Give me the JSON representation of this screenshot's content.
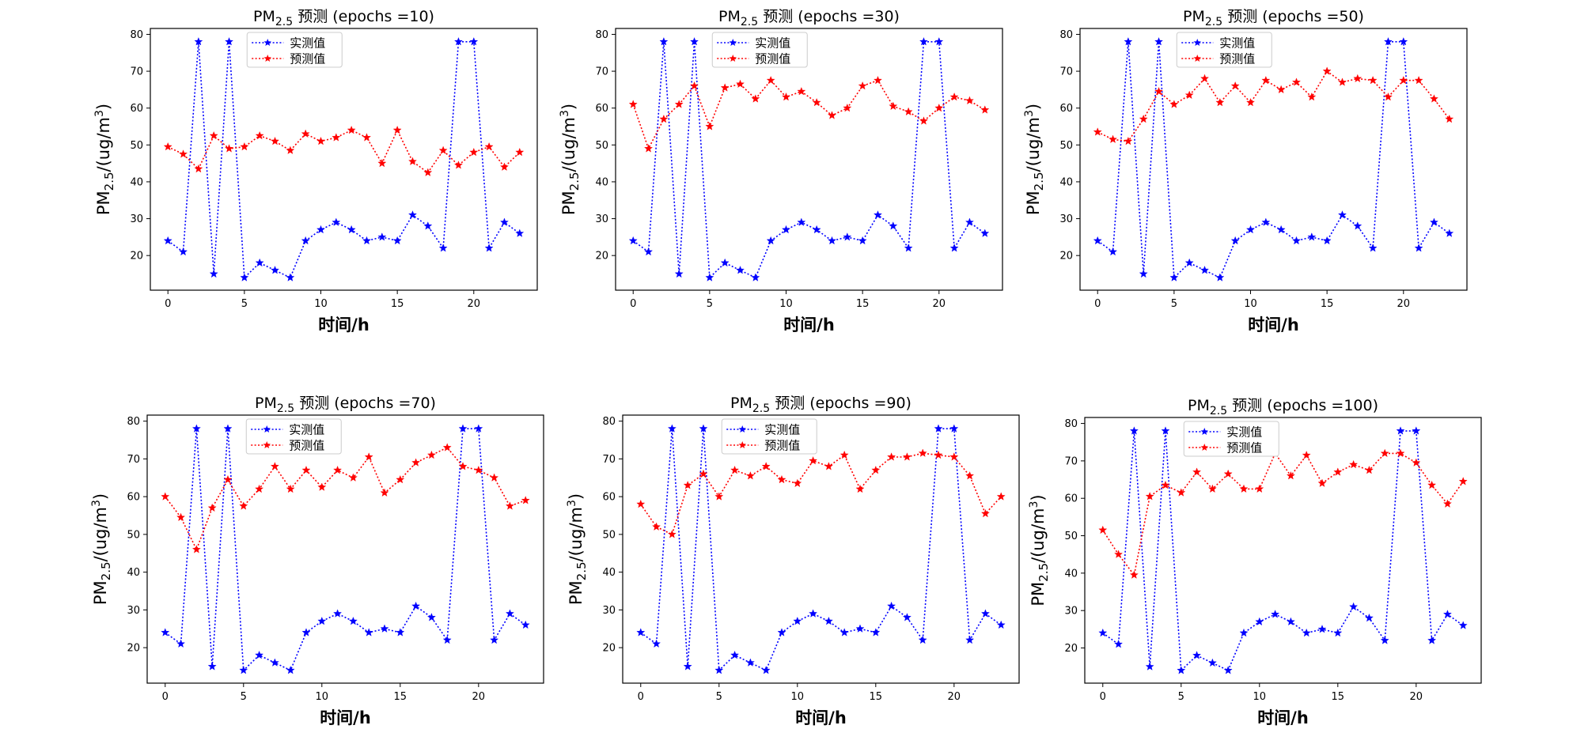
{
  "chart_data": [
    {
      "type": "line",
      "title": {
        "prefix": "PM",
        "sub": "2.5",
        "suffix": " 预测 (epochs =10)"
      },
      "xlabel": "时间/h",
      "ylabel": {
        "prefix": "PM",
        "sub": "2.5",
        "mid": "/(ug/m",
        "sup": "3",
        "suffix": ")"
      },
      "xlim": [
        -1.15,
        24.15
      ],
      "ylim": [
        10.6,
        81.6
      ],
      "xticks": [
        0,
        5,
        10,
        15,
        20
      ],
      "yticks": [
        20,
        30,
        40,
        50,
        60,
        70,
        80
      ],
      "legend_position": "upper-center",
      "x": [
        0,
        1,
        2,
        3,
        4,
        5,
        6,
        7,
        8,
        9,
        10,
        11,
        12,
        13,
        14,
        15,
        16,
        17,
        18,
        19,
        20,
        21,
        22,
        23
      ],
      "series": [
        {
          "name": "实测值",
          "color": "#0000ff",
          "marker": "star",
          "linestyle": "dotted",
          "values": [
            24,
            21,
            78,
            15,
            78,
            14,
            18,
            16,
            14,
            24,
            27,
            29,
            27,
            24,
            25,
            24,
            31,
            28,
            22,
            78,
            78,
            22,
            29,
            26
          ]
        },
        {
          "name": "预测值",
          "color": "#ff0000",
          "marker": "star",
          "linestyle": "dotted",
          "values": [
            49.5,
            47.5,
            43.5,
            52.5,
            49,
            49.5,
            52.5,
            51,
            48.5,
            53,
            51,
            52,
            54,
            52,
            45,
            54,
            45.5,
            42.5,
            48.5,
            44.5,
            48,
            49.5,
            44,
            48
          ]
        }
      ]
    },
    {
      "type": "line",
      "title": {
        "prefix": "PM",
        "sub": "2.5",
        "suffix": " 预测 (epochs =30)"
      },
      "xlabel": "时间/h",
      "ylabel": {
        "prefix": "PM",
        "sub": "2.5",
        "mid": "/(ug/m",
        "sup": "3",
        "suffix": ")"
      },
      "xlim": [
        -1.15,
        24.15
      ],
      "ylim": [
        10.6,
        81.6
      ],
      "xticks": [
        0,
        5,
        10,
        15,
        20
      ],
      "yticks": [
        20,
        30,
        40,
        50,
        60,
        70,
        80
      ],
      "legend_position": "upper-center",
      "x": [
        0,
        1,
        2,
        3,
        4,
        5,
        6,
        7,
        8,
        9,
        10,
        11,
        12,
        13,
        14,
        15,
        16,
        17,
        18,
        19,
        20,
        21,
        22,
        23
      ],
      "series": [
        {
          "name": "实测值",
          "color": "#0000ff",
          "marker": "star",
          "linestyle": "dotted",
          "values": [
            24,
            21,
            78,
            15,
            78,
            14,
            18,
            16,
            14,
            24,
            27,
            29,
            27,
            24,
            25,
            24,
            31,
            28,
            22,
            78,
            78,
            22,
            29,
            26
          ]
        },
        {
          "name": "预测值",
          "color": "#ff0000",
          "marker": "star",
          "linestyle": "dotted",
          "values": [
            61,
            49,
            57,
            61,
            66,
            55,
            65.5,
            66.5,
            62.5,
            67.5,
            63,
            64.5,
            61.5,
            58,
            60,
            66,
            67.5,
            60.5,
            59,
            56.5,
            60,
            63,
            62,
            59.5
          ]
        }
      ]
    },
    {
      "type": "line",
      "title": {
        "prefix": "PM",
        "sub": "2.5",
        "suffix": " 预测 (epochs =50)"
      },
      "xlabel": "时间/h",
      "ylabel": {
        "prefix": "PM",
        "sub": "2.5",
        "mid": "/(ug/m",
        "sup": "3",
        "suffix": ")"
      },
      "xlim": [
        -1.15,
        24.15
      ],
      "ylim": [
        10.6,
        81.6
      ],
      "xticks": [
        0,
        5,
        10,
        15,
        20
      ],
      "yticks": [
        20,
        30,
        40,
        50,
        60,
        70,
        80
      ],
      "legend_position": "upper-center",
      "x": [
        0,
        1,
        2,
        3,
        4,
        5,
        6,
        7,
        8,
        9,
        10,
        11,
        12,
        13,
        14,
        15,
        16,
        17,
        18,
        19,
        20,
        21,
        22,
        23
      ],
      "series": [
        {
          "name": "实测值",
          "color": "#0000ff",
          "marker": "star",
          "linestyle": "dotted",
          "values": [
            24,
            21,
            78,
            15,
            78,
            14,
            18,
            16,
            14,
            24,
            27,
            29,
            27,
            24,
            25,
            24,
            31,
            28,
            22,
            78,
            78,
            22,
            29,
            26
          ]
        },
        {
          "name": "预测值",
          "color": "#ff0000",
          "marker": "star",
          "linestyle": "dotted",
          "values": [
            53.5,
            51.5,
            51,
            57,
            64.5,
            61,
            63.5,
            68,
            61.5,
            66,
            61.5,
            67.5,
            65,
            67,
            63,
            70,
            67,
            68,
            67.5,
            63,
            67.5,
            67.5,
            62.5,
            57
          ]
        }
      ]
    },
    {
      "type": "line",
      "title": {
        "prefix": "PM",
        "sub": "2.5",
        "suffix": " 预测 (epochs =70)"
      },
      "xlabel": "时间/h",
      "ylabel": {
        "prefix": "PM",
        "sub": "2.5",
        "mid": "/(ug/m",
        "sup": "3",
        "suffix": ")"
      },
      "xlim": [
        -1.15,
        24.15
      ],
      "ylim": [
        10.6,
        81.6
      ],
      "xticks": [
        0,
        5,
        10,
        15,
        20
      ],
      "yticks": [
        20,
        30,
        40,
        50,
        60,
        70,
        80
      ],
      "legend_position": "upper-center",
      "x": [
        0,
        1,
        2,
        3,
        4,
        5,
        6,
        7,
        8,
        9,
        10,
        11,
        12,
        13,
        14,
        15,
        16,
        17,
        18,
        19,
        20,
        21,
        22,
        23
      ],
      "series": [
        {
          "name": "实测值",
          "color": "#0000ff",
          "marker": "star",
          "linestyle": "dotted",
          "values": [
            24,
            21,
            78,
            15,
            78,
            14,
            18,
            16,
            14,
            24,
            27,
            29,
            27,
            24,
            25,
            24,
            31,
            28,
            22,
            78,
            78,
            22,
            29,
            26
          ]
        },
        {
          "name": "预测值",
          "color": "#ff0000",
          "marker": "star",
          "linestyle": "dotted",
          "values": [
            60,
            54.5,
            46,
            57,
            64.5,
            57.5,
            62,
            68,
            62,
            67,
            62.5,
            67,
            65,
            70.5,
            61,
            64.5,
            69,
            71,
            73,
            68,
            67,
            65,
            57.5,
            59
          ]
        }
      ]
    },
    {
      "type": "line",
      "title": {
        "prefix": "PM",
        "sub": "2.5",
        "suffix": " 预测 (epochs =90)"
      },
      "xlabel": "时间/h",
      "ylabel": {
        "prefix": "PM",
        "sub": "2.5",
        "mid": "/(ug/m",
        "sup": "3",
        "suffix": ")"
      },
      "xlim": [
        -1.15,
        24.15
      ],
      "ylim": [
        10.6,
        81.6
      ],
      "xticks": [
        0,
        5,
        10,
        15,
        20
      ],
      "yticks": [
        20,
        30,
        40,
        50,
        60,
        70,
        80
      ],
      "legend_position": "upper-center",
      "x": [
        0,
        1,
        2,
        3,
        4,
        5,
        6,
        7,
        8,
        9,
        10,
        11,
        12,
        13,
        14,
        15,
        16,
        17,
        18,
        19,
        20,
        21,
        22,
        23
      ],
      "series": [
        {
          "name": "实测值",
          "color": "#0000ff",
          "marker": "star",
          "linestyle": "dotted",
          "values": [
            24,
            21,
            78,
            15,
            78,
            14,
            18,
            16,
            14,
            24,
            27,
            29,
            27,
            24,
            25,
            24,
            31,
            28,
            22,
            78,
            78,
            22,
            29,
            26
          ]
        },
        {
          "name": "预测值",
          "color": "#ff0000",
          "marker": "star",
          "linestyle": "dotted",
          "values": [
            58,
            52,
            50,
            63,
            66,
            60,
            67,
            65.5,
            68,
            64.5,
            63.5,
            69.5,
            68,
            71,
            62,
            67,
            70.5,
            70.5,
            71.5,
            71,
            70.5,
            65.5,
            55.5,
            60
          ]
        }
      ]
    },
    {
      "type": "line",
      "title": {
        "prefix": "PM",
        "sub": "2.5",
        "suffix": " 预测 (epochs =100)"
      },
      "xlabel": "时间/h",
      "ylabel": {
        "prefix": "PM",
        "sub": "2.5",
        "mid": "/(ug/m",
        "sup": "3",
        "suffix": ")"
      },
      "xlim": [
        -1.15,
        24.15
      ],
      "ylim": [
        10.6,
        81.6
      ],
      "xticks": [
        0,
        5,
        10,
        15,
        20
      ],
      "yticks": [
        20,
        30,
        40,
        50,
        60,
        70,
        80
      ],
      "legend_position": "upper-center",
      "x": [
        0,
        1,
        2,
        3,
        4,
        5,
        6,
        7,
        8,
        9,
        10,
        11,
        12,
        13,
        14,
        15,
        16,
        17,
        18,
        19,
        20,
        21,
        22,
        23
      ],
      "series": [
        {
          "name": "实测值",
          "color": "#0000ff",
          "marker": "star",
          "linestyle": "dotted",
          "values": [
            24,
            21,
            78,
            15,
            78,
            14,
            18,
            16,
            14,
            24,
            27,
            29,
            27,
            24,
            25,
            24,
            31,
            28,
            22,
            78,
            78,
            22,
            29,
            26
          ]
        },
        {
          "name": "预测值",
          "color": "#ff0000",
          "marker": "star",
          "linestyle": "dotted",
          "values": [
            51.5,
            45,
            39.5,
            60.5,
            63.5,
            61.5,
            67,
            62.5,
            66.5,
            62.5,
            62.5,
            72,
            66,
            71.5,
            64,
            67,
            69,
            67.5,
            72,
            72,
            69.5,
            63.5,
            58.5,
            64.5
          ]
        }
      ]
    }
  ]
}
